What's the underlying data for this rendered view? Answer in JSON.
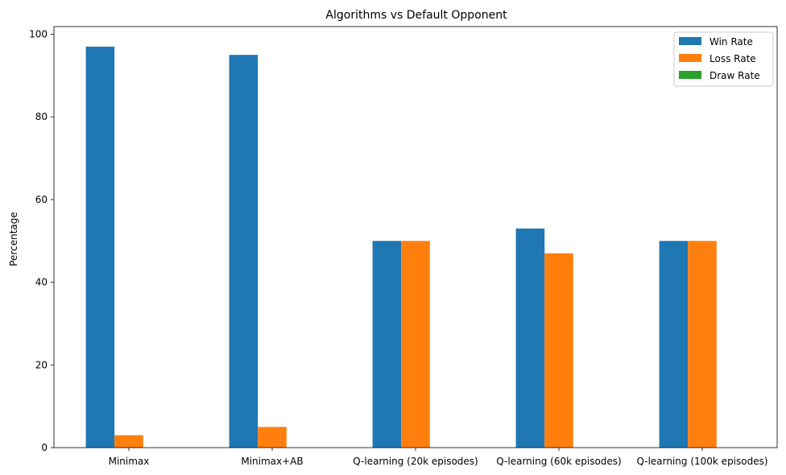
{
  "chart_data": {
    "type": "bar",
    "title": "Algorithms vs Default Opponent",
    "xlabel": "",
    "ylabel": "Percentage",
    "categories": [
      "Minimax",
      "Minimax+AB",
      "Q-learning (20k episodes)",
      "Q-learning (60k episodes)",
      "Q-learning (100k episodes)"
    ],
    "series": [
      {
        "name": "Win Rate",
        "color": "#1f77b4",
        "values": [
          97,
          95,
          50,
          53,
          50
        ]
      },
      {
        "name": "Loss Rate",
        "color": "#ff7f0e",
        "values": [
          3,
          5,
          50,
          47,
          50
        ]
      },
      {
        "name": "Draw Rate",
        "color": "#2ca02c",
        "values": [
          0,
          0,
          0,
          0,
          0
        ]
      }
    ],
    "yticks": [
      0,
      20,
      40,
      60,
      80,
      100
    ],
    "ylim": [
      0,
      101.85
    ],
    "grid": false,
    "legend": "top-right"
  }
}
